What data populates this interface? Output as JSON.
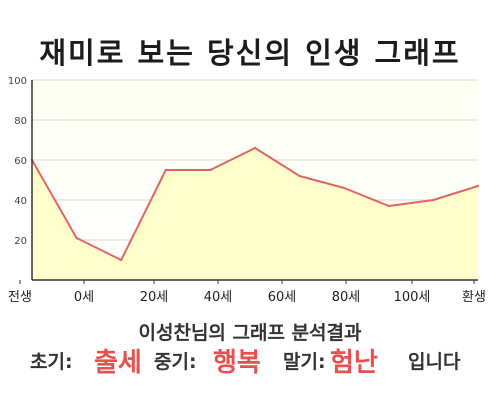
{
  "title": "재미로 보는 당신의 인생 그래프",
  "summary": "이성찬님의 그래프 분석결과",
  "verdict": {
    "early_label": "초기:",
    "early_value": "출세",
    "mid_label": "중기:",
    "mid_value": "행복",
    "late_label": "말기:",
    "late_value": "험난",
    "suffix": "입니다"
  },
  "colors": {
    "line": "#e06666",
    "fill": "#ffffcc",
    "highlight": "#e8504f"
  },
  "chart_data": {
    "type": "area",
    "x_labels": [
      "전생",
      "0세",
      "20세",
      "40세",
      "60세",
      "80세",
      "100세",
      "환생"
    ],
    "values": [
      60,
      21,
      10,
      55,
      55,
      66,
      52,
      46,
      37,
      40,
      47
    ],
    "ylim": [
      0,
      100
    ],
    "y_ticks": [
      0,
      20,
      40,
      60,
      80,
      100
    ],
    "y_tick_labels": [
      "",
      "20",
      "40",
      "60",
      "80",
      "100"
    ],
    "grid": true,
    "legend": "none"
  }
}
